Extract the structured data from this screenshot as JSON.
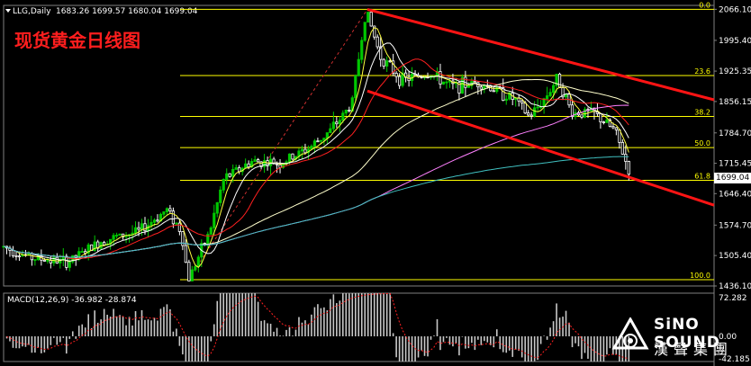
{
  "header": {
    "symbol": "LLG,Daily",
    "ohlc": "1683.26 1699.57 1680.04 1699.04"
  },
  "title_cn": "现货黄金日线图",
  "indicator_label": "MACD(12,26,9) -36.982 -28.874",
  "current_price": "1699.04",
  "logo": {
    "line1": "SiNO SOUND",
    "line2": "漢聲集團"
  },
  "colors": {
    "bull": "#00c800",
    "bear": "#ffffff",
    "channel": "#ff1414",
    "fib": "#ffff00",
    "title": "#ff1e1e"
  },
  "price_axis": [
    "2066.10",
    "1995.40",
    "1925.35",
    "1856.15",
    "1784.70",
    "1715.45",
    "1646.40",
    "1574.70",
    "1505.40",
    "1436.10"
  ],
  "macd_axis": [
    "72.282",
    "0.00",
    "-42.185"
  ],
  "chart_data": {
    "type": "candlestick",
    "title": "现货黄金日线图",
    "ylim": [
      1436.1,
      2075
    ],
    "fib_levels": [
      {
        "label": "0.0",
        "value": 2066.1
      },
      {
        "label": "23.6",
        "value": 1915.3
      },
      {
        "label": "38.2",
        "value": 1822.0
      },
      {
        "label": "50.0",
        "value": 1751.3
      },
      {
        "label": "61.8",
        "value": 1676.6
      },
      {
        "label": "100.0",
        "value": 1450.5
      }
    ],
    "channel": {
      "upper": {
        "x_start": 0.512,
        "y_start": 2066,
        "x_end": 1.0,
        "y_end": 1860
      },
      "lower": {
        "x_start": 0.512,
        "y_start": 1880,
        "x_end": 1.0,
        "y_end": 1620
      }
    },
    "candle_path": [
      [
        0,
        1525
      ],
      [
        0.04,
        1500
      ],
      [
        0.09,
        1490
      ],
      [
        0.14,
        1540
      ],
      [
        0.19,
        1560
      ],
      [
        0.23,
        1610
      ],
      [
        0.25,
        1560
      ],
      [
        0.26,
        1450
      ],
      [
        0.29,
        1560
      ],
      [
        0.31,
        1680
      ],
      [
        0.35,
        1720
      ],
      [
        0.39,
        1715
      ],
      [
        0.43,
        1750
      ],
      [
        0.46,
        1790
      ],
      [
        0.49,
        1850
      ],
      [
        0.51,
        2066
      ],
      [
        0.53,
        1960
      ],
      [
        0.56,
        1905
      ],
      [
        0.6,
        1920
      ],
      [
        0.63,
        1890
      ],
      [
        0.67,
        1900
      ],
      [
        0.72,
        1860
      ],
      [
        0.74,
        1820
      ],
      [
        0.76,
        1860
      ],
      [
        0.78,
        1910
      ],
      [
        0.8,
        1830
      ],
      [
        0.83,
        1830
      ],
      [
        0.86,
        1790
      ],
      [
        0.88,
        1700
      ]
    ],
    "macd": {
      "hist_min": -42.185,
      "hist_max": 72.282,
      "signal": -28.874,
      "macd": -36.982
    }
  }
}
